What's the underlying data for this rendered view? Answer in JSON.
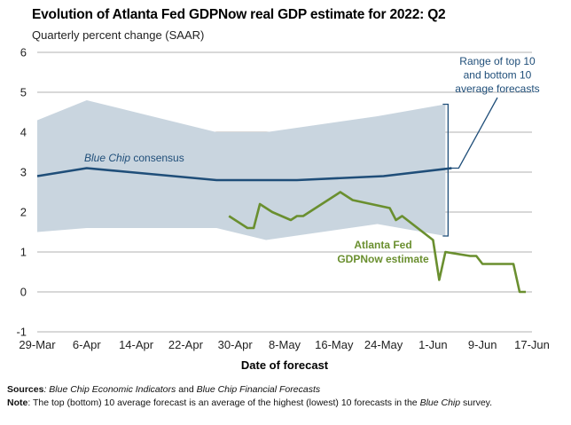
{
  "title": "Evolution of Atlanta Fed GDPNow real GDP estimate for 2022: Q2",
  "subtitle": "Quarterly percent change (SAAR)",
  "colors": {
    "band": "#c9d5df",
    "consensus": "#1f4e79",
    "gdpnow": "#6a8f2f",
    "grid": "#999999"
  },
  "chart_data": {
    "type": "line",
    "xlabel": "Date of forecast",
    "ylabel": "",
    "ylim": [
      -1,
      6
    ],
    "yticks": [
      -1,
      0,
      1,
      2,
      3,
      4,
      5,
      6
    ],
    "xlim": [
      "2022-03-29",
      "2022-06-17"
    ],
    "xticks": [
      "29-Mar",
      "6-Apr",
      "14-Apr",
      "22-Apr",
      "30-Apr",
      "8-May",
      "16-May",
      "24-May",
      "1-Jun",
      "9-Jun",
      "17-Jun"
    ],
    "grid": true,
    "series": [
      {
        "name": "Range of top 10 and bottom 10 average forecasts",
        "kind": "band",
        "x": [
          "2022-03-29",
          "2022-04-06",
          "2022-04-27",
          "2022-05-05",
          "2022-05-23",
          "2022-06-03"
        ],
        "upper": [
          4.3,
          4.8,
          4.0,
          4.0,
          4.4,
          4.7
        ],
        "lower": [
          1.5,
          1.6,
          1.6,
          1.3,
          1.7,
          1.4
        ]
      },
      {
        "name": "Blue Chip consensus",
        "kind": "line",
        "x": [
          "2022-03-29",
          "2022-04-06",
          "2022-04-13",
          "2022-04-27",
          "2022-05-10",
          "2022-05-24",
          "2022-06-04"
        ],
        "y": [
          2.9,
          3.1,
          3.0,
          2.8,
          2.8,
          2.9,
          3.1
        ]
      },
      {
        "name": "Atlanta Fed GDPNow estimate",
        "kind": "line",
        "x": [
          "2022-04-29",
          "2022-05-02",
          "2022-05-03",
          "2022-05-04",
          "2022-05-06",
          "2022-05-09",
          "2022-05-10",
          "2022-05-11",
          "2022-05-13",
          "2022-05-17",
          "2022-05-19",
          "2022-05-25",
          "2022-05-26",
          "2022-05-27",
          "2022-06-01",
          "2022-06-02",
          "2022-06-03",
          "2022-06-07",
          "2022-06-08",
          "2022-06-09",
          "2022-06-14",
          "2022-06-15",
          "2022-06-16"
        ],
        "y": [
          1.9,
          1.6,
          1.6,
          2.2,
          2.0,
          1.8,
          1.9,
          1.9,
          2.1,
          2.5,
          2.3,
          2.1,
          1.8,
          1.9,
          1.3,
          0.3,
          1.0,
          0.9,
          0.9,
          0.7,
          0.7,
          0.0,
          0.0
        ]
      }
    ],
    "annotations": {
      "band": [
        "Range of top 10",
        "and bottom 10",
        "average forecasts"
      ],
      "consensus_italic": "Blue Chip",
      "consensus_rest": " consensus",
      "gdpnow": [
        "Atlanta Fed",
        "GDPNow estimate"
      ]
    }
  },
  "footer": {
    "sources_label": "Sources",
    "sources_a": ": ",
    "sources_b": "Blue Chip Economic Indicators",
    "sources_c": " and ",
    "sources_d": "Blue Chip Financial Forecasts",
    "note_label": "Note",
    "note_a": ": The top (bottom) 10 average forecast is an average of the highest (lowest) 10 forecasts in the ",
    "note_b": "Blue Chip",
    "note_c": " survey."
  }
}
